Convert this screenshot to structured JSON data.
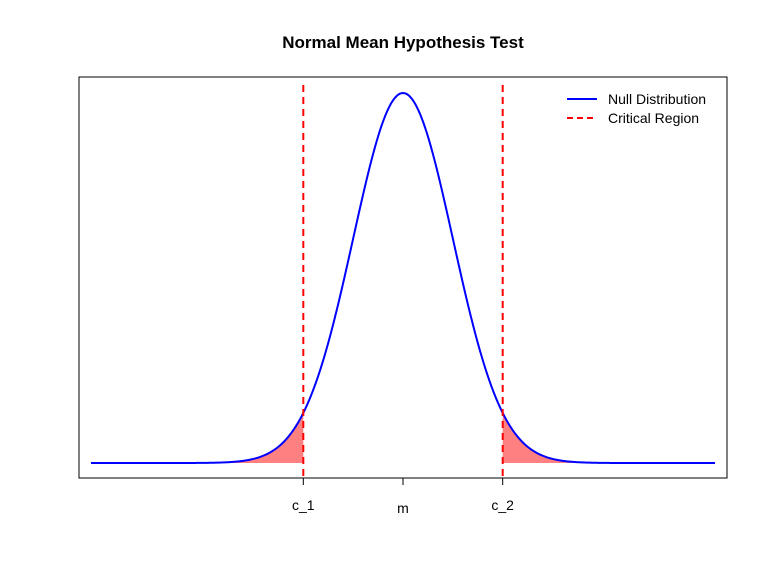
{
  "chart_data": {
    "type": "line",
    "title": "Normal Mean Hypothesis Test",
    "xlabel": "",
    "ylabel": "",
    "xlim": [
      -3.25,
      3.25
    ],
    "ylim": [
      0,
      1
    ],
    "mean": 0,
    "sd": 0.5,
    "critical_values": [
      -1,
      1
    ],
    "x_ticks": [
      {
        "value": -1,
        "label": "c_1"
      },
      {
        "value": 0,
        "label": "m"
      },
      {
        "value": 1,
        "label": "c_2"
      }
    ],
    "y_ticks": [],
    "grid": false,
    "legend_position": "top-right",
    "series": [
      {
        "name": "Null Distribution",
        "style": "solid",
        "color": "#0000ff",
        "x_range": [
          -3.25,
          3.25
        ]
      },
      {
        "name": "Critical Region",
        "style": "dashed",
        "color": "#ff0000",
        "x_values": [
          -1,
          1
        ]
      }
    ],
    "shaded_regions": [
      {
        "from": -3.25,
        "to": -1,
        "color": "#ff8080"
      },
      {
        "from": 1,
        "to": 3.25,
        "color": "#ff8080"
      }
    ]
  }
}
